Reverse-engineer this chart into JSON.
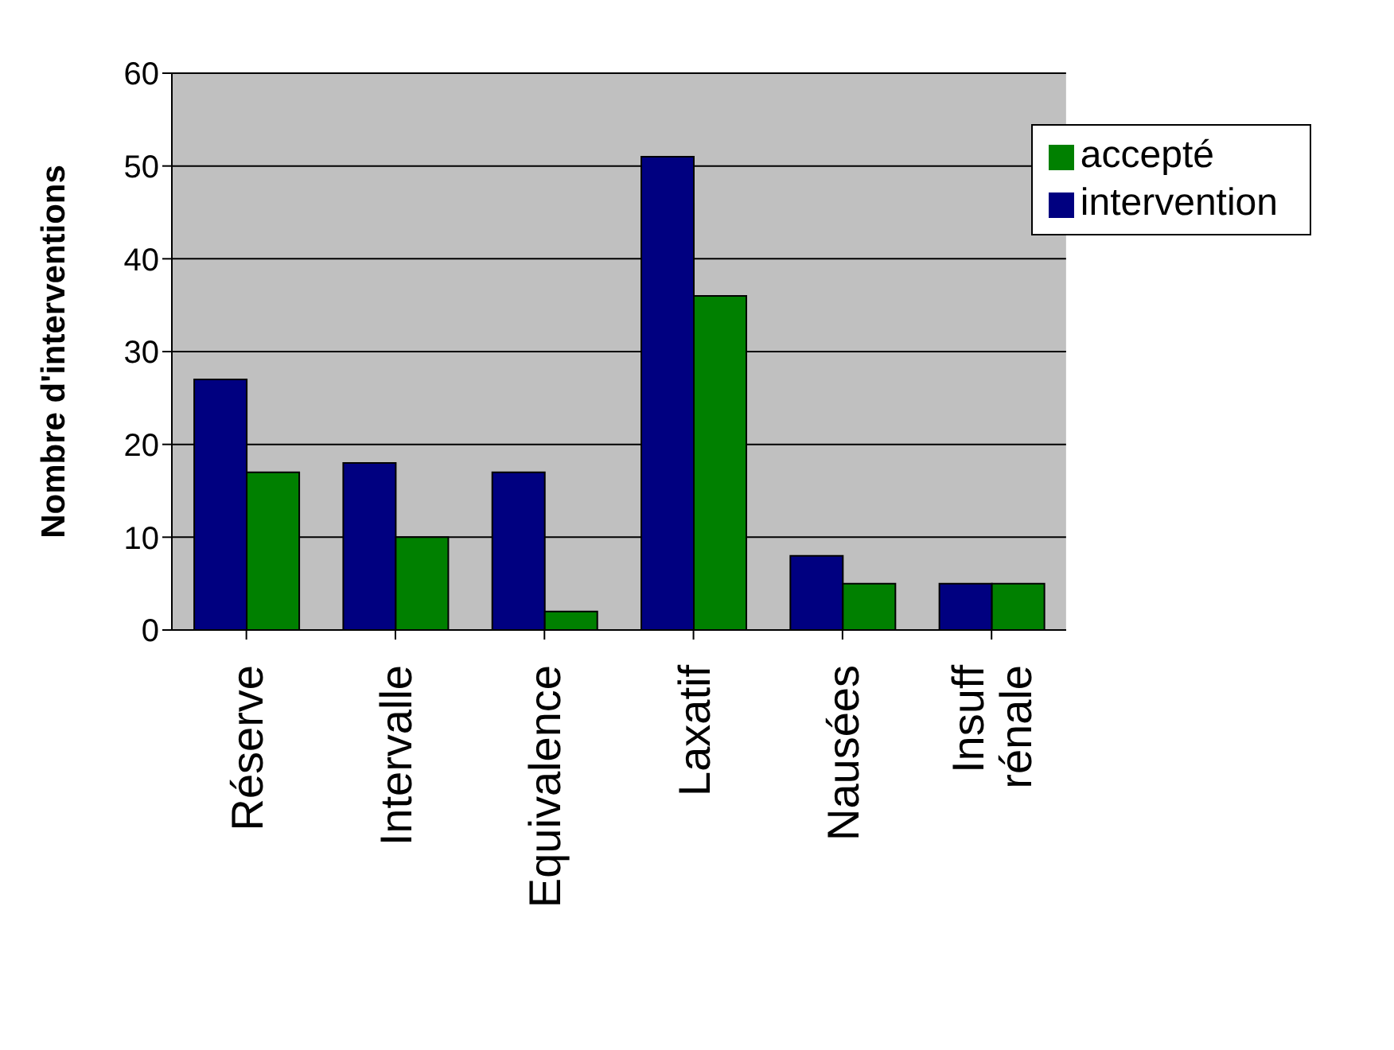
{
  "chart_data": {
    "type": "bar",
    "ylabel": "Nombre d'interventions",
    "categories": [
      "Réserve",
      "Intervalle",
      "Equivalence",
      "Laxatif",
      "Nausées",
      "Insuff\nrénale"
    ],
    "series": [
      {
        "name": "intervention",
        "color": "#000080",
        "values": [
          27,
          18,
          17,
          51,
          8,
          5
        ]
      },
      {
        "name": "accepté",
        "color": "#008000",
        "values": [
          17,
          10,
          2,
          36,
          5,
          5
        ]
      }
    ],
    "ylim": [
      0,
      60
    ],
    "yticks": [
      0,
      10,
      20,
      30,
      40,
      50,
      60
    ],
    "grid": "y",
    "legend": "top right"
  }
}
